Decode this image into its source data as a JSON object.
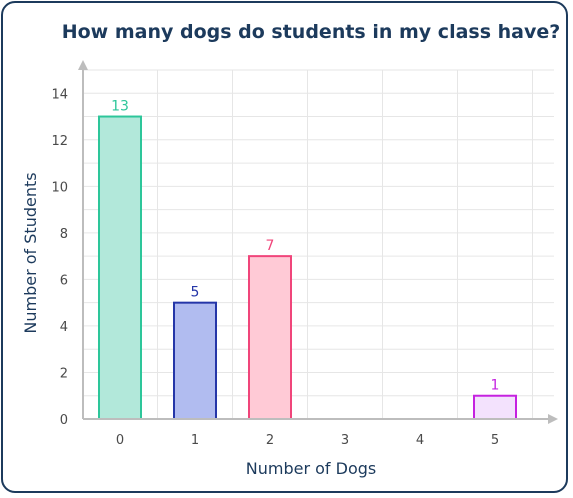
{
  "chart_data": {
    "type": "bar",
    "title": "How many dogs do students in my class have?",
    "xlabel": "Number of Dogs",
    "ylabel": "Number of Students",
    "categories": [
      "0",
      "1",
      "2",
      "3",
      "4",
      "5"
    ],
    "values": [
      13,
      5,
      7,
      0,
      0,
      1
    ],
    "data_labels": [
      "13",
      "5",
      "7",
      "",
      "",
      "1"
    ],
    "ylim": [
      0,
      15
    ],
    "yticks": [
      0,
      2,
      4,
      6,
      8,
      10,
      12,
      14
    ],
    "ytick_labels": [
      "0",
      "2",
      "4",
      "6",
      "8",
      "10",
      "12",
      "14"
    ],
    "grid": true,
    "bar_colors": [
      {
        "fill": "#b2e8da",
        "stroke": "#2dc69a",
        "label": "#2dc69a"
      },
      {
        "fill": "#b1bcf0",
        "stroke": "#2536a8",
        "label": "#2536a8"
      },
      {
        "fill": "#ffcad6",
        "stroke": "#f0457a",
        "label": "#f0457a"
      },
      {
        "fill": "#ffffff",
        "stroke": "#ffffff",
        "label": "#ffffff"
      },
      {
        "fill": "#ffffff",
        "stroke": "#ffffff",
        "label": "#ffffff"
      },
      {
        "fill": "#f3e2fd",
        "stroke": "#c522e0",
        "label": "#c522e0"
      }
    ],
    "colors": {
      "title": "#1c3a5c",
      "axis": "#bdbdbd",
      "grid": "#e6e6e6",
      "tick_text": "#4a4a4a"
    }
  }
}
